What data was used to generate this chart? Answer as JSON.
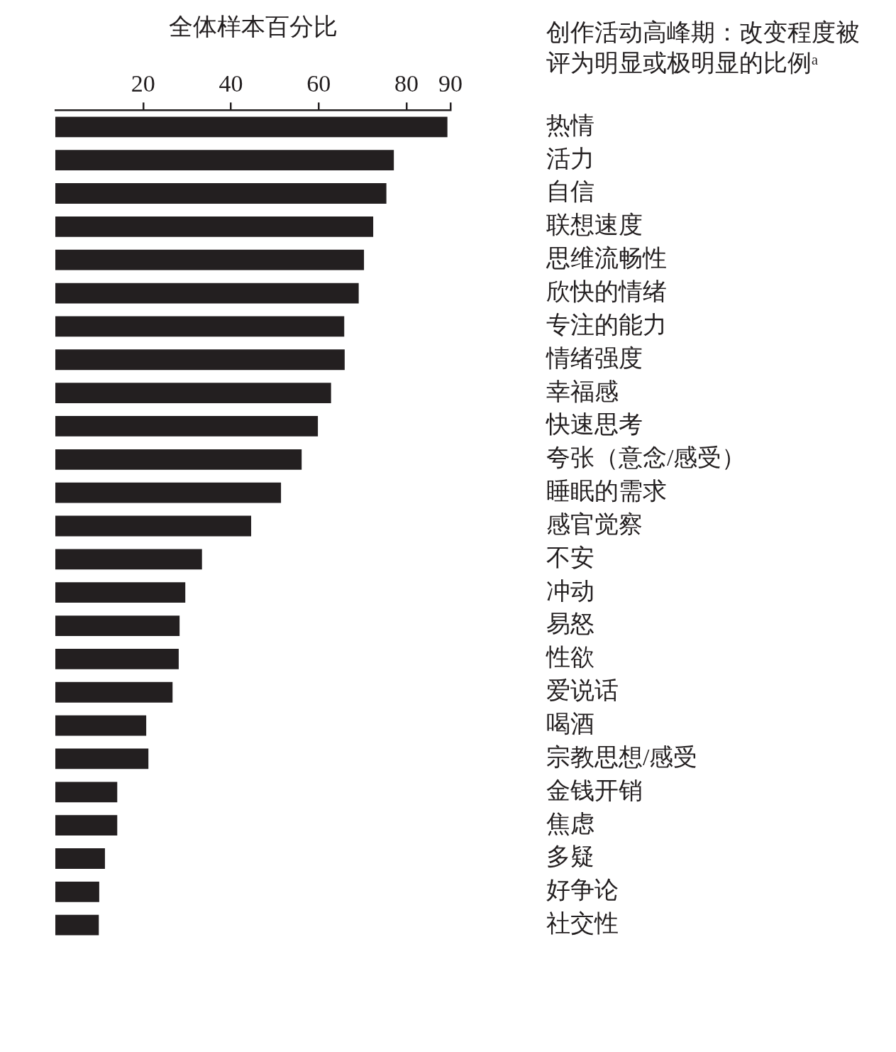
{
  "chart_data": {
    "type": "bar",
    "orientation": "horizontal",
    "xlabel": "全体样本百分比",
    "ylabel": "创作活动高峰期：改变程度被评为明显或极明显的比例ᵃ",
    "categories": [
      "热情",
      "活力",
      "自信",
      "联想速度",
      "思维流畅性",
      "欣快的情绪",
      "专注的能力",
      "情绪强度",
      "幸福感",
      "快速思考",
      "夸张（意念/感受）",
      "睡眠的需求",
      "感官觉察",
      "不安",
      "冲动",
      "易怒",
      "性欲",
      "爱说话",
      "喝酒",
      "宗教思想/感受",
      "金钱开销",
      "焦虑",
      "多疑",
      "好争论",
      "社交性"
    ],
    "values": [
      89.3,
      77.1,
      75.4,
      72.4,
      70.3,
      69.1,
      65.8,
      65.9,
      62.8,
      59.8,
      56.1,
      51.4,
      44.6,
      33.4,
      29.6,
      28.3,
      28.1,
      26.7,
      20.7,
      21.2,
      14.1,
      14.1,
      11.3,
      10.0,
      9.9
    ],
    "color": "#231f20",
    "xlim": [
      0,
      90
    ],
    "xticks": [
      20,
      40,
      60,
      80,
      90
    ]
  }
}
